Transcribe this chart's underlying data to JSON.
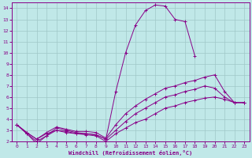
{
  "xlabel": "Windchill (Refroidissement éolien,°C)",
  "xlim": [
    -0.5,
    23.5
  ],
  "ylim": [
    2,
    14.5
  ],
  "xticks": [
    0,
    1,
    2,
    3,
    4,
    5,
    6,
    7,
    8,
    9,
    10,
    11,
    12,
    13,
    14,
    15,
    16,
    17,
    18,
    19,
    20,
    21,
    22,
    23
  ],
  "yticks": [
    2,
    3,
    4,
    5,
    6,
    7,
    8,
    9,
    10,
    11,
    12,
    13,
    14
  ],
  "background_color": "#c0e8e8",
  "grid_color": "#a0c8c8",
  "line_color": "#880088",
  "lines": [
    {
      "x": [
        0,
        1,
        2,
        3,
        4,
        5,
        6,
        7,
        8,
        9,
        10,
        11,
        12,
        13,
        14,
        15,
        16,
        17,
        18
      ],
      "y": [
        3.5,
        2.7,
        1.8,
        2.5,
        3.2,
        3.0,
        2.8,
        2.7,
        2.6,
        2.2,
        6.5,
        10.0,
        12.5,
        13.8,
        14.3,
        14.2,
        13.0,
        12.8,
        9.7
      ]
    },
    {
      "x": [
        0,
        1,
        2,
        3,
        4,
        5,
        6,
        7,
        8,
        9,
        10,
        11,
        12,
        13,
        14,
        15,
        16,
        17,
        18,
        19,
        20,
        21,
        22,
        23
      ],
      "y": [
        3.5,
        2.8,
        2.2,
        2.8,
        3.3,
        3.1,
        2.9,
        2.9,
        2.8,
        2.3,
        3.5,
        4.5,
        5.2,
        5.8,
        6.3,
        6.8,
        7.0,
        7.3,
        7.5,
        7.8,
        8.0,
        6.5,
        5.5,
        5.5
      ]
    },
    {
      "x": [
        0,
        1,
        2,
        3,
        4,
        5,
        6,
        7,
        8,
        9,
        10,
        11,
        12,
        13,
        14,
        15,
        16,
        17,
        18,
        19,
        20,
        21,
        22,
        23
      ],
      "y": [
        3.5,
        2.8,
        2.2,
        2.7,
        3.0,
        2.9,
        2.7,
        2.7,
        2.6,
        2.2,
        3.0,
        3.8,
        4.5,
        5.0,
        5.5,
        6.0,
        6.2,
        6.5,
        6.7,
        7.0,
        6.8,
        6.0,
        5.5,
        5.5
      ]
    },
    {
      "x": [
        0,
        1,
        2,
        3,
        4,
        5,
        6,
        7,
        8,
        9,
        10,
        11,
        12,
        13,
        14,
        15,
        16,
        17,
        18,
        19,
        20,
        21,
        22,
        23
      ],
      "y": [
        3.5,
        2.7,
        2.0,
        2.5,
        3.0,
        2.8,
        2.7,
        2.6,
        2.5,
        2.0,
        2.7,
        3.2,
        3.7,
        4.0,
        4.5,
        5.0,
        5.2,
        5.5,
        5.7,
        5.9,
        6.0,
        5.8,
        5.5,
        5.5
      ]
    }
  ]
}
